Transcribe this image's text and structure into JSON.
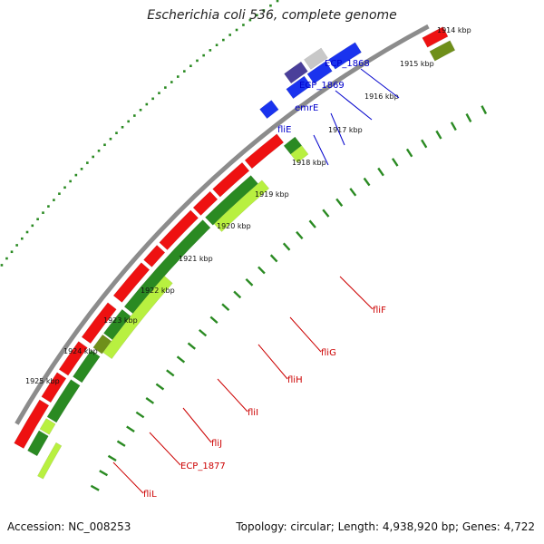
{
  "title": "Escherichia coli 536, complete genome",
  "footer": {
    "accession": "Accession: NC_008253",
    "summary": "Topology: circular; Length: 4,938,920 bp; Genes: 4,722"
  },
  "colors": {
    "backbone": "#8c8c8c",
    "forward_cds": "#ee1111",
    "reverse_cds": "#1a33ee",
    "dark_green": "#2a8a22",
    "light_green": "#b8f040",
    "olive": "#6f8f1a",
    "dots": "#2a8a22",
    "label_red": "#cc0000",
    "label_blue": "#0000cc",
    "lavender": "#4a3f9a",
    "grey_feature": "#c8c8c8"
  },
  "tick_labels": [
    "1914 kbp",
    "1915 kbp",
    "1916 kbp",
    "1917 kbp",
    "1918 kbp",
    "1919 kbp",
    "1920 kbp",
    "1921 kbp",
    "1922 kbp",
    "1923 kbp",
    "1924 kbp",
    "1925 kbp"
  ],
  "gene_labels_inner": [
    "fliF",
    "fliG",
    "fliH",
    "fliI",
    "fliJ",
    "ECP_1877",
    "fliL"
  ],
  "gene_labels_outer": [
    "ECP_1868",
    "ECP_1869",
    "emrE",
    "fliE"
  ]
}
